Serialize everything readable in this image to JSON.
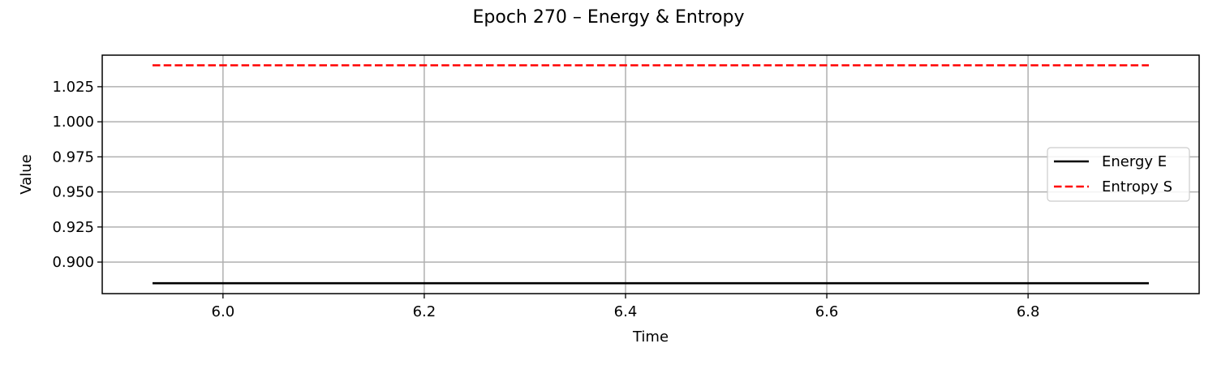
{
  "chart_data": {
    "type": "line",
    "title": "Epoch 270 – Energy & Entropy",
    "xlabel": "Time",
    "ylabel": "Value",
    "xlim": [
      5.88,
      6.97
    ],
    "ylim": [
      0.8775,
      1.0475
    ],
    "xticks": [
      6.0,
      6.2,
      6.4,
      6.6,
      6.8
    ],
    "xtick_labels": [
      "6.0",
      "6.2",
      "6.4",
      "6.6",
      "6.8"
    ],
    "yticks": [
      0.9,
      0.925,
      0.95,
      0.975,
      1.0,
      1.025
    ],
    "ytick_labels": [
      "0.900",
      "0.925",
      "0.950",
      "0.975",
      "1.000",
      "1.025"
    ],
    "grid": true,
    "legend_position": "right",
    "series": [
      {
        "name": "Energy E",
        "color": "#000000",
        "style": "solid",
        "x": [
          5.93,
          6.92
        ],
        "y": [
          0.8849,
          0.8849
        ]
      },
      {
        "name": "Entropy S",
        "color": "#ff0000",
        "style": "dashed",
        "x": [
          5.93,
          6.92
        ],
        "y": [
          1.0403,
          1.0403
        ]
      }
    ]
  }
}
